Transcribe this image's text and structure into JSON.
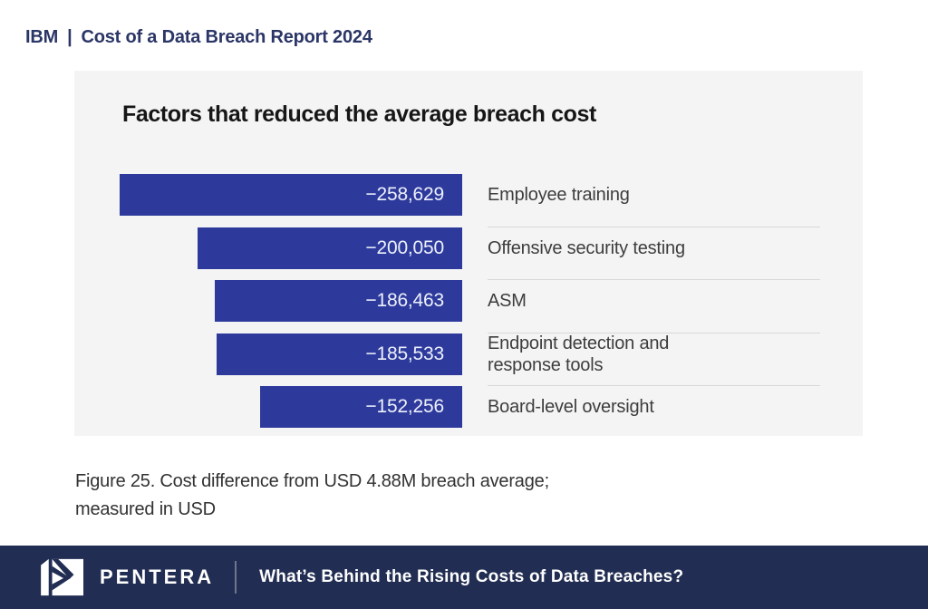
{
  "page_header": {
    "brand": "IBM",
    "separator": "|",
    "title": "Cost of a Data Breach Report 2024"
  },
  "chart_data": {
    "type": "bar",
    "orientation": "horizontal",
    "title": "Factors that reduced the average breach cost",
    "categories": [
      "Employee training",
      "Offensive security testing",
      "ASM",
      "Endpoint detection and response tools",
      "Board-level oversight"
    ],
    "values": [
      -258629,
      -200050,
      -186463,
      -185533,
      -152256
    ],
    "value_labels": [
      "−258,629",
      "−200,050",
      "−186,463",
      "−185,533",
      "−152,256"
    ],
    "xlabel": "",
    "ylabel": "",
    "xlim": [
      -258629,
      0
    ],
    "grid": false,
    "legend_position": "none",
    "bar_color": "#2d3a9c",
    "panel_bg": "#f4f4f4",
    "note": "Figure 25. Cost difference from USD 4.88M breach average; measured in USD"
  },
  "caption": {
    "line1": "Figure 25. Cost difference from USD 4.88M breach average;",
    "line2": "measured in USD"
  },
  "footer": {
    "logo": "pentera-logo",
    "brand": "PENTERA",
    "title": "What’s Behind the Rising Costs of Data Breaches?",
    "bg_color": "#212d52"
  },
  "colors": {
    "header_text": "#2b3667",
    "bar_blue": "#2d3a9c",
    "footer_navy": "#212d52",
    "panel_gray": "#f4f4f4"
  }
}
